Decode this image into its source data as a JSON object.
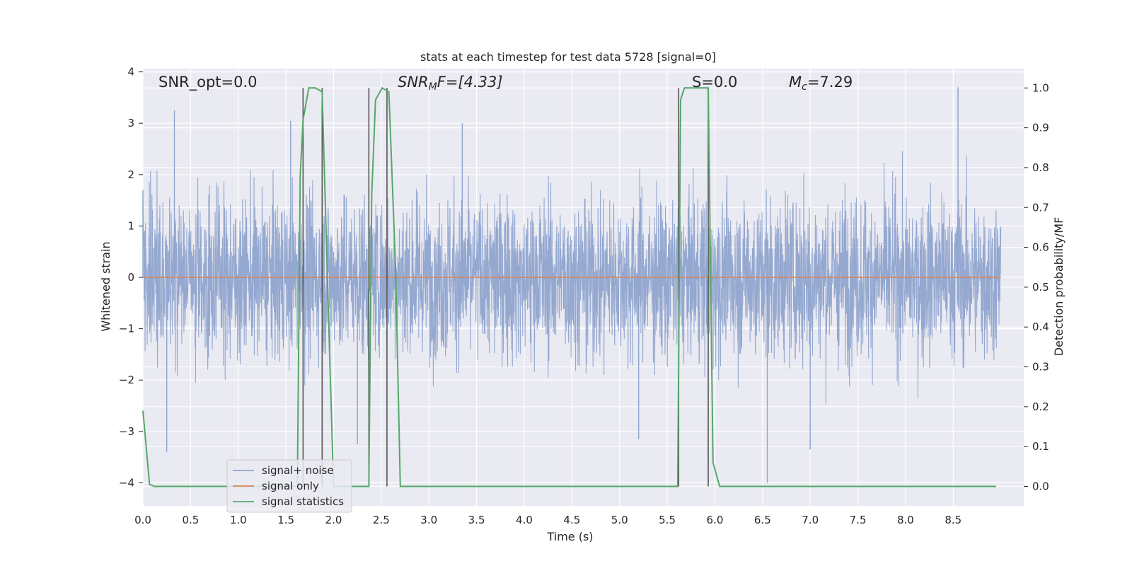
{
  "chart_data": {
    "type": "line",
    "title": "stats at each timestep for test data 5728 [signal=0]",
    "xlabel": "Time (s)",
    "ylabel": "Whitened strain",
    "ylabel_right": "Detection probability/MF",
    "xlim": [
      0.0,
      9.0
    ],
    "ylim": [
      -4.4,
      4.1
    ],
    "ylim_right": [
      -0.047,
      1.045
    ],
    "x_ticks": [
      "0.0",
      "0.5",
      "1.0",
      "1.5",
      "2.0",
      "2.5",
      "3.0",
      "3.5",
      "4.0",
      "4.5",
      "5.0",
      "5.5",
      "6.0",
      "6.5",
      "7.0",
      "7.5",
      "8.0",
      "8.5"
    ],
    "y_ticks": [
      "4",
      "3",
      "2",
      "1",
      "0",
      "−1",
      "−2",
      "−3",
      "−4"
    ],
    "y_right_ticks": [
      "1.0",
      "0.9",
      "0.8",
      "0.7",
      "0.6",
      "0.5",
      "0.4",
      "0.3",
      "0.2",
      "0.1",
      "0.0"
    ],
    "annotations": {
      "snr_opt": "SNR_opt=0.0",
      "snr_mf_prefix": "SNR",
      "snr_mf_sub": "M",
      "snr_mf_suffix": "F=[4.33]",
      "s_label": "S=0.0",
      "mc_prefix": "M",
      "mc_sub": "c",
      "mc_suffix": "=7.29"
    },
    "legend": {
      "placement": "lower-left",
      "entries": [
        "signal+ noise",
        "signal only",
        "signal statistics"
      ]
    },
    "colors": {
      "noise": "#8fa4cd",
      "signal": "#dd8452",
      "stats": "#55a868",
      "markers": "#555555",
      "background": "#eaeaf2",
      "grid": "#ffffff"
    },
    "series": [
      {
        "name": "signal+ noise",
        "description_range": {
          "x": [
            0.0,
            9.0
          ],
          "y_min": -4.0,
          "y_max": 3.7
        },
        "envelope_points": [
          {
            "x": 0.0,
            "y": 1.7
          },
          {
            "x": 0.25,
            "y": -3.4
          },
          {
            "x": 0.33,
            "y": 3.25
          },
          {
            "x": 1.55,
            "y": 3.05
          },
          {
            "x": 2.25,
            "y": -3.25
          },
          {
            "x": 3.35,
            "y": 3.0
          },
          {
            "x": 5.2,
            "y": -3.15
          },
          {
            "x": 6.55,
            "y": -4.0
          },
          {
            "x": 7.0,
            "y": -3.35
          },
          {
            "x": 8.55,
            "y": 3.7
          }
        ]
      },
      {
        "name": "signal only",
        "x": [
          0.0,
          9.0
        ],
        "y": [
          0.0,
          0.0
        ]
      },
      {
        "name": "signal statistics",
        "x": [
          0.0,
          0.07,
          0.12,
          1.62,
          1.65,
          1.68,
          1.74,
          1.81,
          1.88,
          1.95,
          2.0,
          2.37,
          2.4,
          2.44,
          2.51,
          2.58,
          2.65,
          2.7,
          5.61,
          5.64,
          5.68,
          5.93,
          5.98,
          6.05,
          8.95
        ],
        "y": [
          0.19,
          0.005,
          0.0,
          0.0,
          0.78,
          0.92,
          1.0,
          1.0,
          0.99,
          0.4,
          0.0,
          0.0,
          0.73,
          0.97,
          1.0,
          0.99,
          0.55,
          0.0,
          0.0,
          0.97,
          1.0,
          1.0,
          0.06,
          0.0,
          0.0
        ]
      }
    ],
    "vertical_markers_x": [
      1.68,
      1.88,
      2.37,
      2.56,
      5.62,
      5.93
    ]
  }
}
